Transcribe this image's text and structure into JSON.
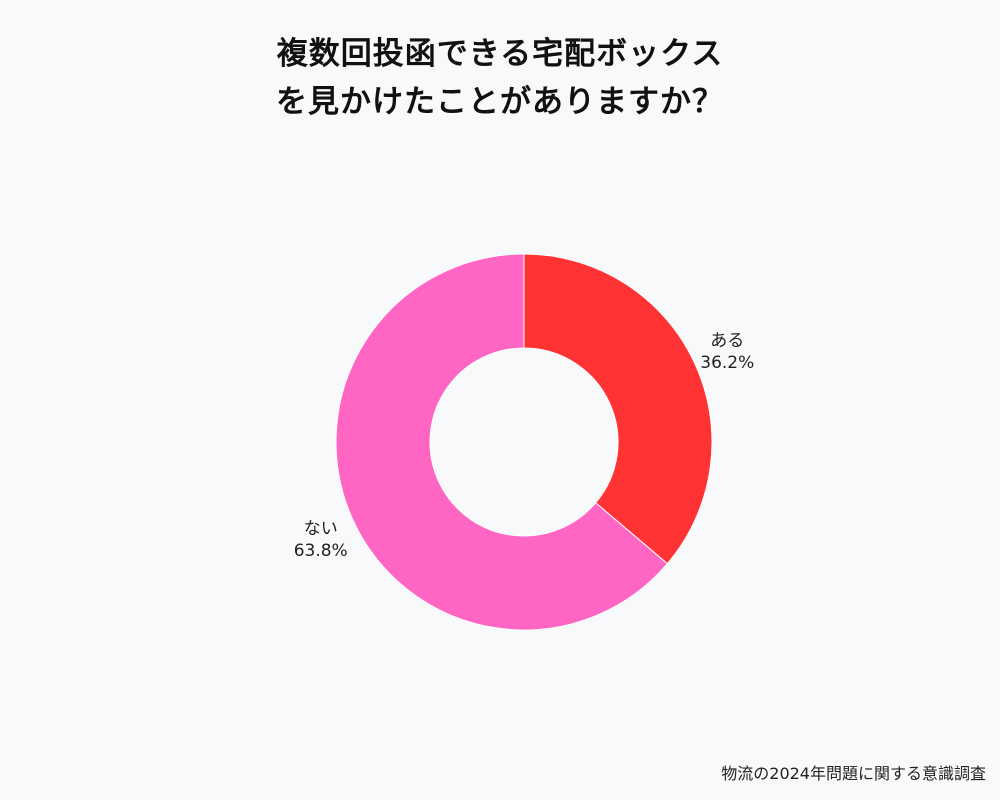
{
  "title": {
    "line1": "複数回投函できる宅配ボックス",
    "line2": "を見かけたことがありますか？"
  },
  "footer": "物流の2024年問題に関する意識調査",
  "chart_data": {
    "type": "pie",
    "donut": true,
    "categories": [
      "ある",
      "ない"
    ],
    "values": [
      36.2,
      63.8
    ],
    "labels": [
      "36.2%",
      "63.8%"
    ],
    "colors": [
      "#ff3333",
      "#ff66c4"
    ],
    "legend": "none"
  }
}
